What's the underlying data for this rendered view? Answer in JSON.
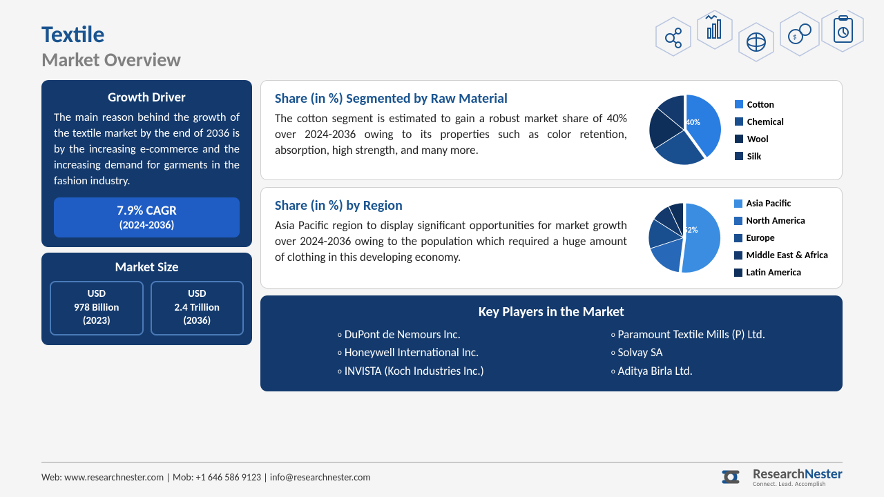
{
  "header": {
    "title_line1": "Textile",
    "title_line2": "Market Overview"
  },
  "growth_driver": {
    "title": "Growth Driver",
    "body": "The main reason behind the growth of the textile market by the end of 2036 is by the increasing e-commerce and the increasing demand for garments in the fashion industry.",
    "cagr_value": "7.9% CAGR",
    "cagr_period": "(2024-2036)"
  },
  "market_size": {
    "title": "Market Size",
    "box1_l1": "USD",
    "box1_l2": "978 Billion",
    "box1_l3": "(2023)",
    "box2_l1": "USD",
    "box2_l2": "2.4 Trillion",
    "box2_l3": "(2036)"
  },
  "raw_material": {
    "title": "Share (in %) Segmented by Raw Material",
    "body": "The cotton segment is estimated to gain a robust market share of 40% over 2024-2036 owing to its properties such as color retention, absorption, high strength, and many more.",
    "pie": {
      "type": "pie",
      "highlight_label": "40%",
      "slices": [
        {
          "name": "Cotton",
          "value": 40,
          "color": "#2a7de1"
        },
        {
          "name": "Chemical",
          "value": 26,
          "color": "#1a4f8f"
        },
        {
          "name": "Wool",
          "value": 20,
          "color": "#0e2f5a"
        },
        {
          "name": "Silk",
          "value": 14,
          "color": "#143a6d"
        }
      ]
    },
    "legend": [
      "Cotton",
      "Chemical",
      "Wool",
      "Silk"
    ],
    "legend_colors": [
      "#2a7de1",
      "#1a4f8f",
      "#0e2f5a",
      "#143a6d"
    ]
  },
  "region": {
    "title": "Share (in %) by Region",
    "body": "Asia Pacific region to display significant opportunities for market growth over 2024-2036 owing to the population which required a huge amount of clothing in this developing economy.",
    "pie": {
      "type": "pie",
      "highlight_label": "52%",
      "slices": [
        {
          "name": "Asia Pacific",
          "value": 52,
          "color": "#3a8de1"
        },
        {
          "name": "North America",
          "value": 18,
          "color": "#2868b8"
        },
        {
          "name": "Europe",
          "value": 14,
          "color": "#1a4f8f"
        },
        {
          "name": "Middle East & Africa",
          "value": 9,
          "color": "#143a6d"
        },
        {
          "name": "Latin America",
          "value": 7,
          "color": "#0e2f5a"
        }
      ]
    },
    "legend": [
      "Asia Pacific",
      "North America",
      "Europe",
      "Middle East & Africa",
      "Latin America"
    ],
    "legend_colors": [
      "#3a8de1",
      "#2868b8",
      "#1a4f8f",
      "#143a6d",
      "#0e2f5a"
    ]
  },
  "key_players": {
    "title": "Key Players in the Market",
    "col1": [
      "DuPont de Nemours Inc.",
      "Honeywell International Inc.",
      "INVISTA (Koch Industries Inc.)"
    ],
    "col2": [
      "Paramount Textile Mills (P) Ltd.",
      "Solvay SA",
      "Aditya Birla Ltd."
    ]
  },
  "footer": {
    "contact": "Web: www.researchnester.com  | Mob: +1 646 586 9123 | info@researchnester.com",
    "logo_name1": "Research",
    "logo_name2": "Nester",
    "logo_tag": "Connect. Lead. Accomplish"
  },
  "colors": {
    "primary_dark": "#143a6d",
    "primary_blue": "#1a5490",
    "accent_blue": "#1f5dc4",
    "bg": "#f5f5f5"
  }
}
